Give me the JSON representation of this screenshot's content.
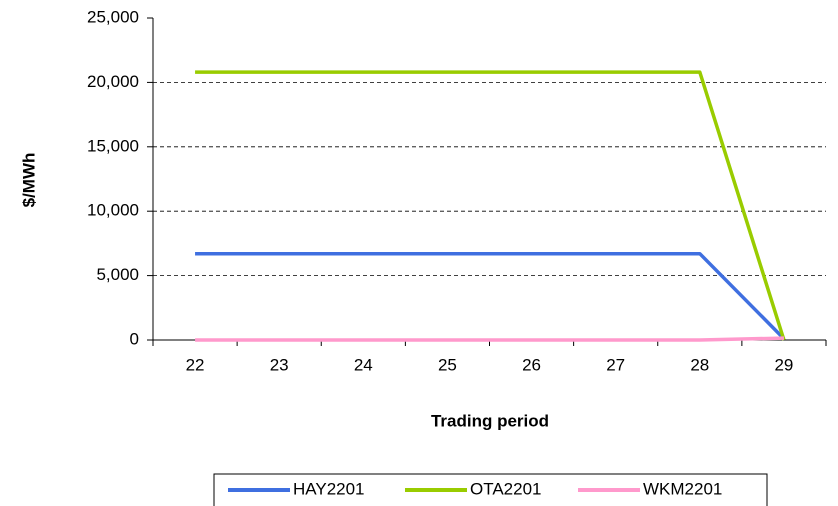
{
  "chart_data": {
    "type": "line",
    "x_label": "Trading period",
    "y_label": "$/MWh",
    "categories": [
      "22",
      "23",
      "24",
      "25",
      "26",
      "27",
      "28",
      "29"
    ],
    "series": [
      {
        "name": "HAY2201",
        "color": "#3f6fe0",
        "values": [
          6700,
          6700,
          6700,
          6700,
          6700,
          6700,
          6700,
          100
        ]
      },
      {
        "name": "OTA2201",
        "color": "#99cc00",
        "values": [
          20800,
          20800,
          20800,
          20800,
          20800,
          20800,
          20800,
          0
        ]
      },
      {
        "name": "WKM2201",
        "color": "#ff99cc",
        "values": [
          0,
          0,
          0,
          0,
          0,
          0,
          0,
          150
        ]
      }
    ],
    "ylim": [
      0,
      25000
    ],
    "yticks": [
      0,
      {
        "value": 5000,
        "label": "5,000"
      },
      {
        "value": 10000,
        "label": "10,000"
      },
      {
        "value": 15000,
        "label": "15,000"
      },
      {
        "value": 20000,
        "label": "20,000"
      },
      {
        "value": 25000,
        "label": "25,000"
      }
    ],
    "grid": true,
    "legend": "bottom"
  }
}
